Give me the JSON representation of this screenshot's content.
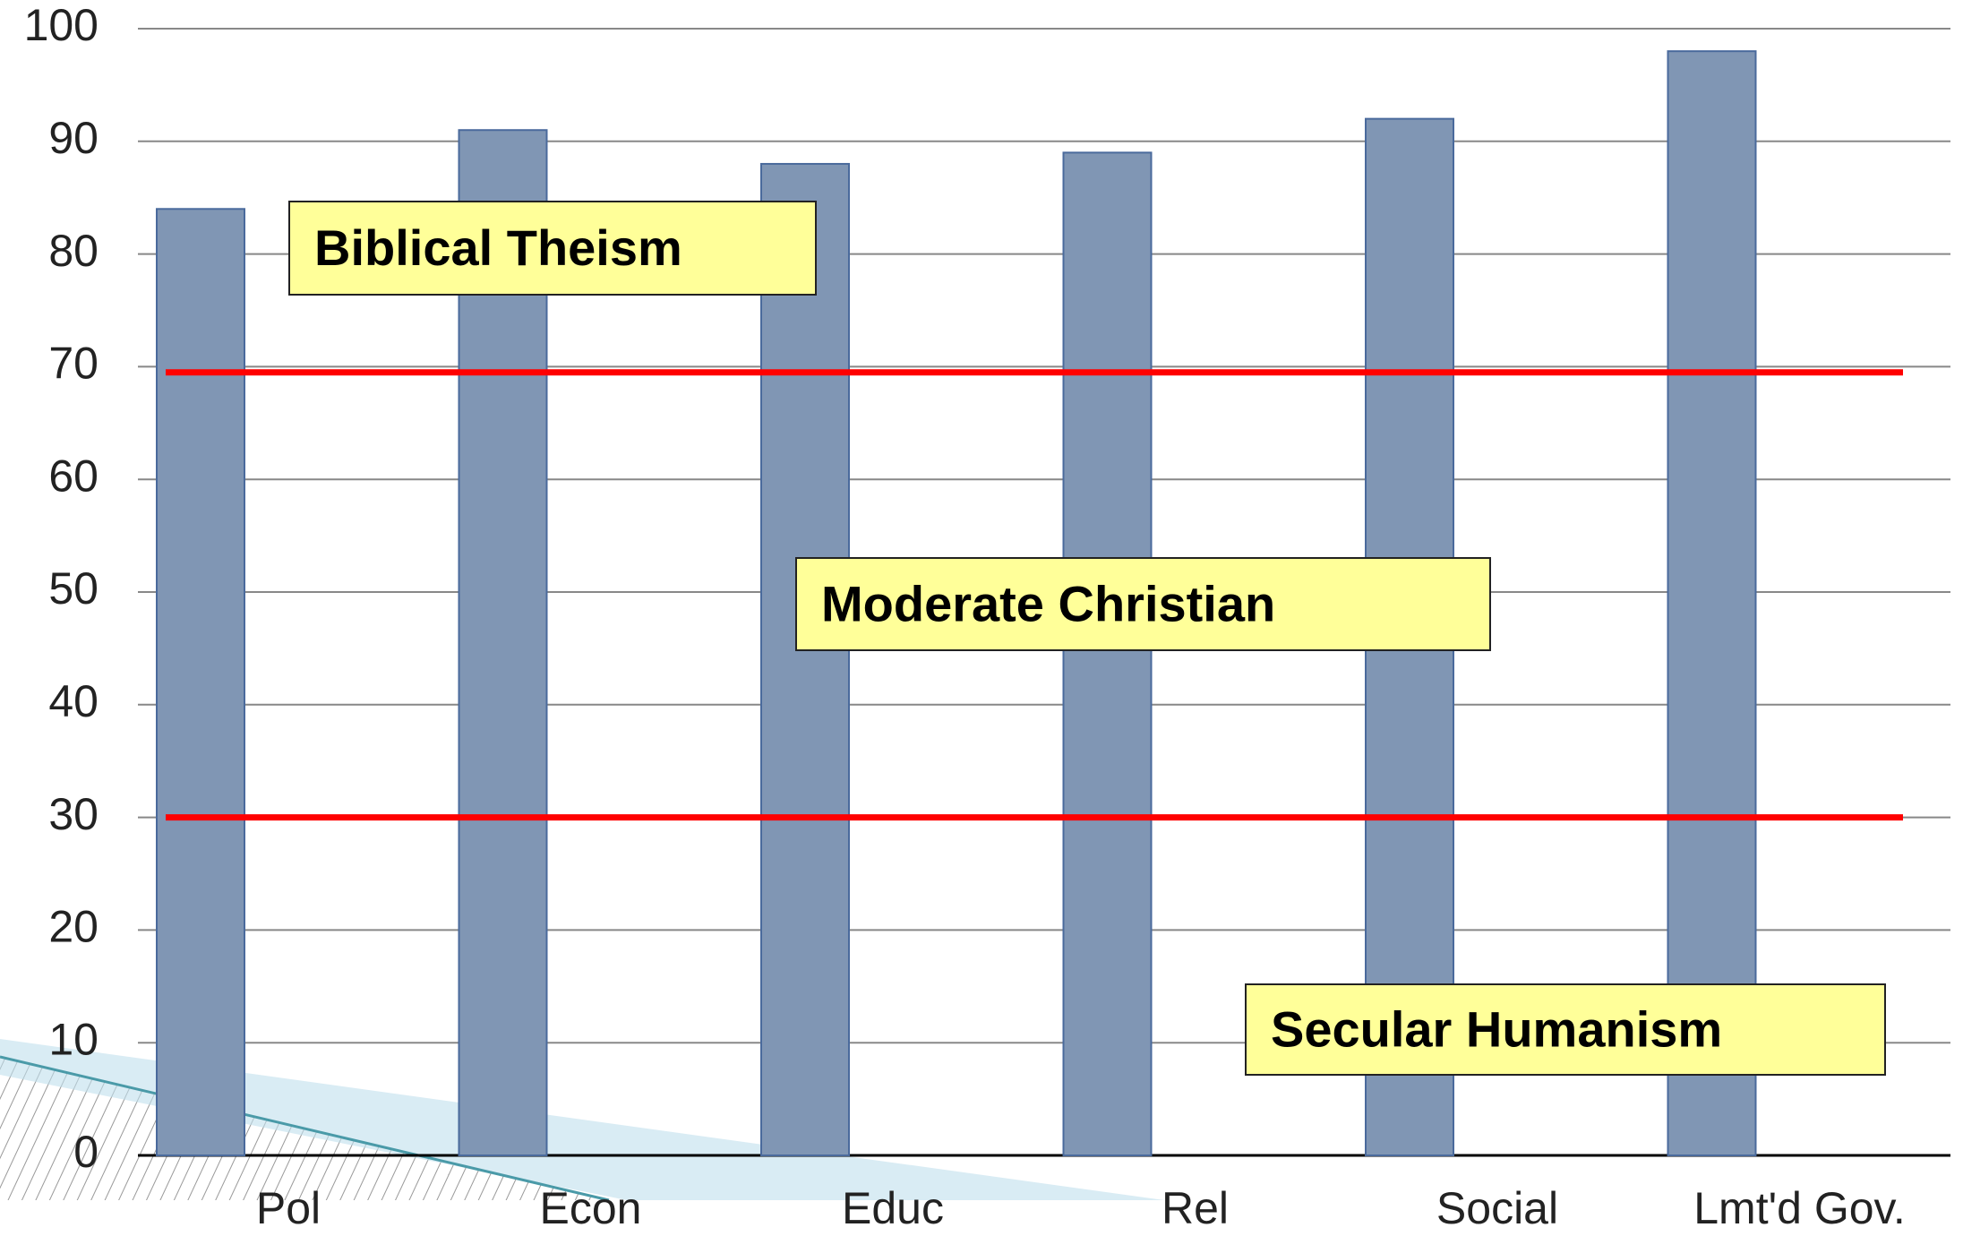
{
  "chart_data": {
    "type": "bar",
    "categories": [
      "Pol",
      "Econ",
      "Educ",
      "Rel",
      "Social",
      "Lmt'd Gov."
    ],
    "values": [
      84,
      91,
      88,
      89,
      92,
      98
    ],
    "color": "#8096b4",
    "ylim": [
      0,
      100
    ],
    "yticks": [
      0,
      10,
      20,
      30,
      40,
      50,
      60,
      70,
      80,
      90,
      100
    ],
    "grid": true,
    "reference_lines": [
      69.5,
      30
    ],
    "reference_color": "#ff0000",
    "annotations": [
      "Biblical Theism",
      "Moderate Christian",
      "Secular Humanism"
    ]
  }
}
